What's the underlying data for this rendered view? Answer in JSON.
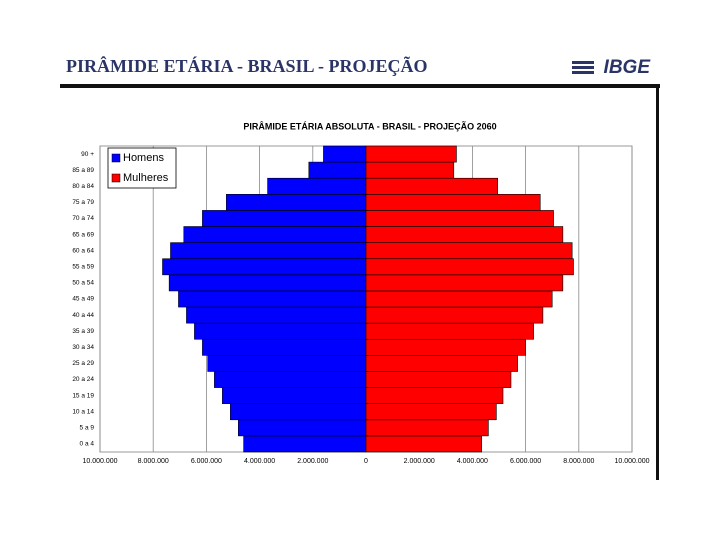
{
  "header": {
    "title": "PIRÂMIDE ETÁRIA - BRASIL - PROJEÇÃO",
    "logo": "IBGE"
  },
  "chart_data": {
    "type": "pyramid",
    "title": "PIRÂMIDE ETÁRIA ABSOLUTA - BRASIL - PROJEÇÃO 2060",
    "categories": [
      "0 a 4",
      "5 a 9",
      "10 a 14",
      "15 a 19",
      "20 a 24",
      "25 a 29",
      "30 a 34",
      "35 a 39",
      "40 a 44",
      "45 a 49",
      "50 a 54",
      "55 a 59",
      "60 a 64",
      "65 a 69",
      "70 a 74",
      "75 a 79",
      "80 a 84",
      "85 a 89",
      "90 +"
    ],
    "series": [
      {
        "name": "Homens",
        "color": "#0000ff",
        "values": [
          -4600000,
          -4800000,
          -5100000,
          -5400000,
          -5700000,
          -5950000,
          -6150000,
          -6450000,
          -6750000,
          -7050000,
          -7400000,
          -7650000,
          -7350000,
          -6850000,
          -6150000,
          -5250000,
          -3700000,
          -2150000,
          -1600000
        ]
      },
      {
        "name": "Mulheres",
        "color": "#ff0000",
        "values": [
          4350000,
          4600000,
          4900000,
          5150000,
          5450000,
          5700000,
          6000000,
          6300000,
          6650000,
          7000000,
          7400000,
          7800000,
          7750000,
          7400000,
          7050000,
          6550000,
          4950000,
          3300000,
          3400000
        ]
      }
    ],
    "xlim": [
      -10000000,
      10000000
    ],
    "xticks": [
      {
        "value": -10000000,
        "label": "10.000.000"
      },
      {
        "value": -8000000,
        "label": "8.000.000"
      },
      {
        "value": -6000000,
        "label": "6.000.000"
      },
      {
        "value": -4000000,
        "label": "4.000.000"
      },
      {
        "value": -2000000,
        "label": "2.000.000"
      },
      0,
      {
        "value": 2000000,
        "label": "2.000.000"
      },
      {
        "value": 4000000,
        "label": "4.000.000"
      },
      {
        "value": 6000000,
        "label": "6.000.000"
      },
      {
        "value": 8000000,
        "label": "8.000.000"
      },
      {
        "value": 10000000,
        "label": "10.000.000"
      }
    ],
    "grid": true,
    "legend": "upper left"
  }
}
